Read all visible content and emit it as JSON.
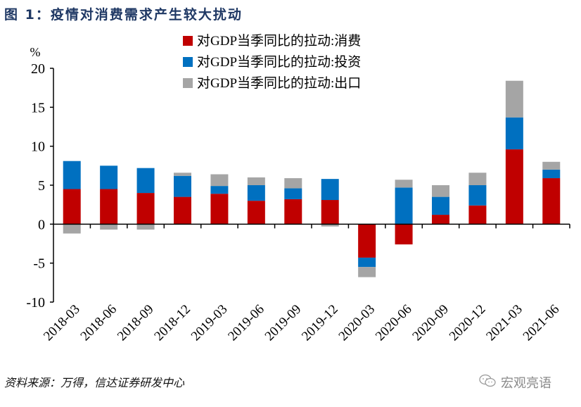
{
  "header": {
    "title": "图 1：疫情对消费需求产生较大扰动"
  },
  "footer": {
    "source": "资料来源：万得，信达证券研发中心",
    "watermark": "宏观亮语",
    "watermark_icon": "wechat-icon"
  },
  "chart_data": {
    "type": "bar",
    "stacked": true,
    "title": "疫情对消费需求产生较大扰动",
    "ylabel": "%",
    "xlabel": "",
    "ylim": [
      -10,
      20
    ],
    "yticks": [
      20,
      15,
      10,
      5,
      0,
      -5,
      -10
    ],
    "grid": false,
    "legend_position": "top-center",
    "categories": [
      "2018-03",
      "2018-06",
      "2018-09",
      "2018-12",
      "2019-03",
      "2019-06",
      "2019-09",
      "2019-12",
      "2020-03",
      "2020-06",
      "2020-09",
      "2020-12",
      "2021-03",
      "2021-06"
    ],
    "series": [
      {
        "name": "对GDP当季同比的拉动:消费",
        "color": "#c00000",
        "values": [
          4.5,
          4.5,
          4.0,
          3.5,
          3.9,
          3.0,
          3.2,
          3.1,
          -4.3,
          -2.6,
          1.2,
          2.4,
          9.6,
          5.9
        ]
      },
      {
        "name": "对GDP当季同比的拉动:投资",
        "color": "#0070c0",
        "values": [
          3.6,
          3.0,
          3.2,
          2.7,
          1.0,
          2.0,
          1.4,
          2.7,
          -1.2,
          4.7,
          2.3,
          2.6,
          4.1,
          1.1
        ]
      },
      {
        "name": "对GDP当季同比的拉动:出口",
        "color": "#a5a5a5",
        "values": [
          -1.2,
          -0.7,
          -0.7,
          0.4,
          1.5,
          1.0,
          1.3,
          -0.3,
          -1.3,
          1.0,
          1.5,
          1.6,
          4.7,
          1.0
        ]
      }
    ]
  }
}
